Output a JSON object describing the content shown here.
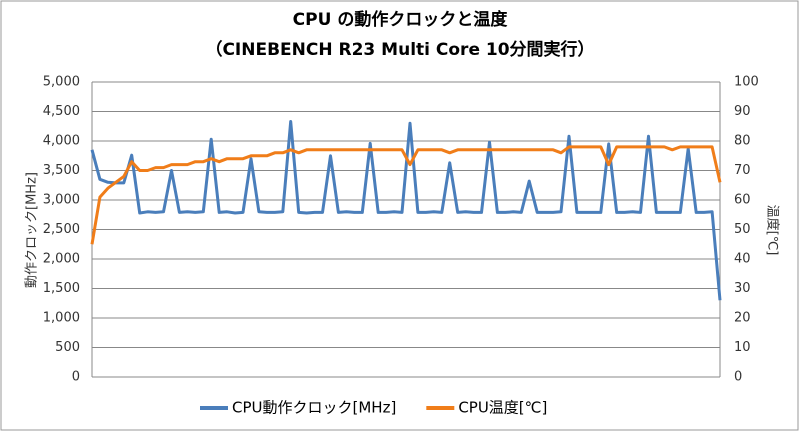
{
  "chart_data": {
    "type": "line",
    "title": "CPU の動作クロックと温度",
    "subtitle": "（CINEBENCH R23 Multi Core 10分間実行）",
    "y_label": "動作クロック[MHz]",
    "y2_label": "温度[℃]",
    "categories": [
      null,
      null,
      null,
      null,
      null,
      null,
      null,
      null,
      null,
      null,
      null,
      null,
      null,
      null,
      null,
      null,
      null,
      null,
      null,
      null,
      null,
      null,
      null,
      null,
      null,
      null,
      null,
      null,
      null,
      null,
      null,
      null,
      null,
      null,
      null,
      null,
      null,
      null,
      null,
      null,
      null,
      null,
      null,
      null,
      null,
      null,
      null,
      null,
      null,
      null,
      null,
      null,
      null,
      null,
      null,
      null,
      null,
      null,
      null,
      null,
      null,
      null,
      null,
      null,
      null,
      null,
      null,
      null,
      null,
      null,
      null,
      null,
      null,
      null,
      null,
      null,
      null,
      null,
      null,
      null
    ],
    "series": [
      {
        "name": "CPU動作クロック[MHz]",
        "color": "#4a7ebb",
        "values": [
          3850,
          3350,
          3300,
          3290,
          3290,
          3760,
          2780,
          2800,
          2790,
          2800,
          3500,
          2790,
          2800,
          2790,
          2800,
          4030,
          2790,
          2800,
          2780,
          2790,
          3700,
          2800,
          2790,
          2790,
          2800,
          4330,
          2790,
          2780,
          2790,
          2790,
          3750,
          2790,
          2800,
          2790,
          2790,
          3960,
          2790,
          2790,
          2800,
          2790,
          4300,
          2790,
          2790,
          2800,
          2790,
          3630,
          2790,
          2800,
          2790,
          2790,
          3980,
          2790,
          2790,
          2800,
          2790,
          3320,
          2790,
          2790,
          2790,
          2800,
          4080,
          2790,
          2790,
          2790,
          2790,
          3950,
          2790,
          2790,
          2800,
          2790,
          4080,
          2790,
          2790,
          2790,
          2790,
          3870,
          2790,
          2790,
          2800,
          1300
        ]
      },
      {
        "name": "CPU温度[℃]",
        "color": "#f07d19",
        "axis": "y2",
        "values": [
          45,
          61,
          64,
          66,
          68,
          73,
          70,
          70,
          71,
          71,
          72,
          72,
          72,
          73,
          73,
          74,
          73,
          74,
          74,
          74,
          75,
          75,
          75,
          76,
          76,
          77,
          76,
          77,
          77,
          77,
          77,
          77,
          77,
          77,
          77,
          77,
          77,
          77,
          77,
          77,
          72,
          77,
          77,
          77,
          77,
          76,
          77,
          77,
          77,
          77,
          77,
          77,
          77,
          77,
          77,
          77,
          77,
          77,
          77,
          76,
          78,
          78,
          78,
          78,
          78,
          72,
          78,
          78,
          78,
          78,
          78,
          78,
          78,
          77,
          78,
          78,
          78,
          78,
          78,
          66
        ]
      }
    ],
    "ylim": [
      0,
      5000
    ],
    "yticks": [
      0,
      500,
      {
        "value": 1000,
        "label": "1,000"
      },
      {
        "value": 1500,
        "label": "1,500"
      },
      {
        "value": 2000,
        "label": "2,000"
      },
      {
        "value": 2500,
        "label": "2,500"
      },
      {
        "value": 3000,
        "label": "3,000"
      },
      {
        "value": 3500,
        "label": "3,500"
      },
      {
        "value": 4000,
        "label": "4,000"
      },
      {
        "value": 4500,
        "label": "4,500"
      },
      {
        "value": 5000,
        "label": "5,000"
      }
    ],
    "y2lim": [
      0,
      100
    ],
    "y2ticks": [
      0,
      10,
      20,
      30,
      40,
      50,
      60,
      70,
      80,
      90,
      100
    ],
    "grid": true,
    "legend": "bottom"
  }
}
